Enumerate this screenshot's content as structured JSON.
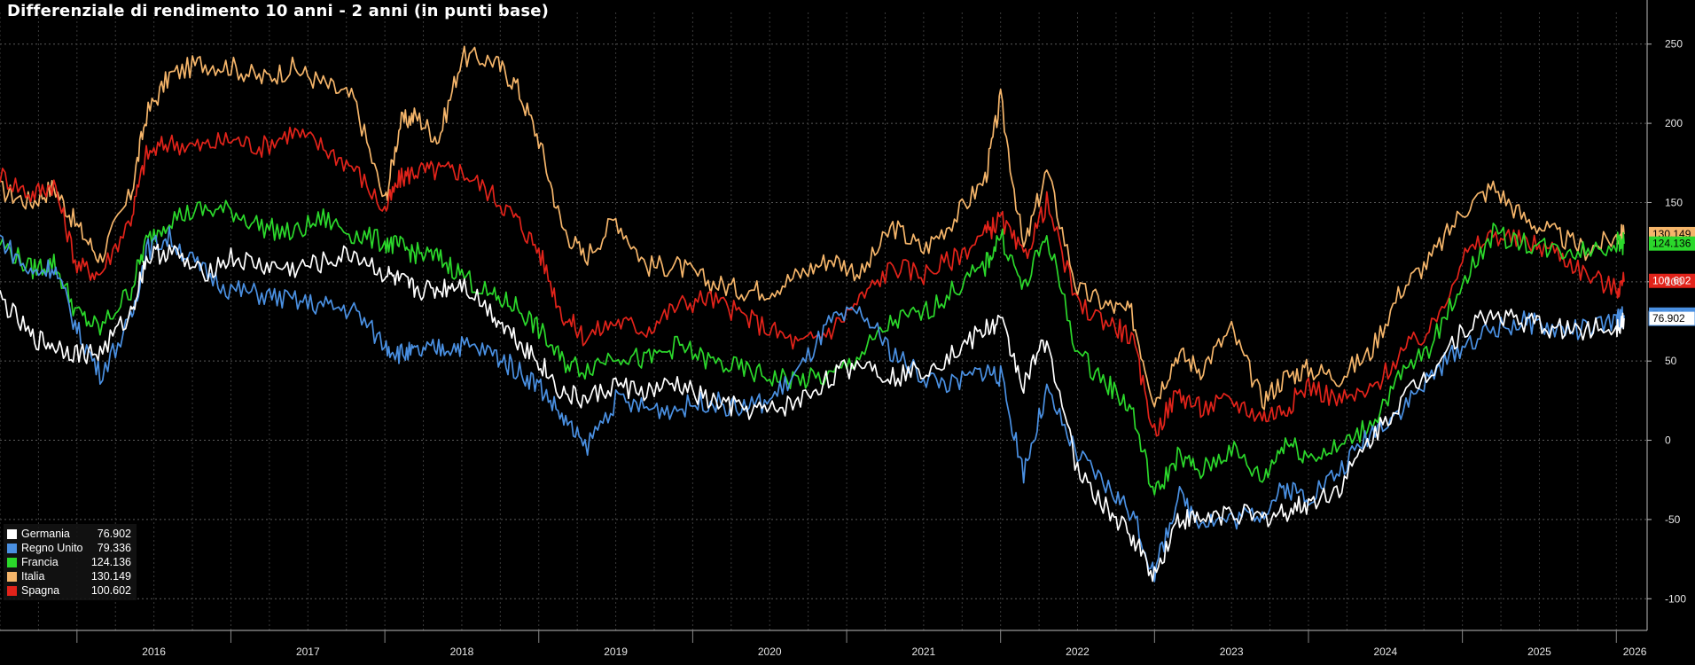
{
  "chart_data": {
    "type": "line",
    "title": "Differenziale di rendimento 10 anni - 2 anni (in punti base)",
    "x_tick_labels": [
      "2016",
      "2017",
      "2018",
      "2019",
      "2020",
      "2021",
      "2022",
      "2023",
      "2024",
      "2025",
      "2026"
    ],
    "y_tick_labels": [
      "250",
      "200",
      "150",
      "100",
      "50",
      "0",
      "-50",
      "-100"
    ],
    "y_ticks": [
      250,
      200,
      150,
      100,
      50,
      0,
      -50,
      -100
    ],
    "ylim": [
      -120,
      270
    ],
    "xlim": [
      2015.5,
      2026.2
    ],
    "grid": true,
    "legend_position": "bottom-left",
    "series": [
      {
        "name": "Italia",
        "color": "#f5b56a",
        "last": "130.149",
        "label_text": "130.149",
        "x": [
          2015.5,
          2015.7,
          2015.85,
          2016.0,
          2016.15,
          2016.35,
          2016.45,
          2016.6,
          2016.8,
          2017.0,
          2017.2,
          2017.4,
          2017.6,
          2017.8,
          2018.0,
          2018.1,
          2018.2,
          2018.35,
          2018.5,
          2018.7,
          2018.85,
          2019.0,
          2019.15,
          2019.3,
          2019.5,
          2019.7,
          2019.9,
          2020.1,
          2020.3,
          2020.5,
          2020.7,
          2020.9,
          2021.1,
          2021.3,
          2021.5,
          2021.7,
          2021.9,
          2022.0,
          2022.15,
          2022.3,
          2022.5,
          2022.7,
          2022.85,
          2023.0,
          2023.15,
          2023.3,
          2023.5,
          2023.7,
          2023.85,
          2024.0,
          2024.2,
          2024.4,
          2024.6,
          2024.8,
          2025.0,
          2025.2,
          2025.4,
          2025.6,
          2025.8,
          2026.0,
          2026.05
        ],
        "y": [
          158,
          150,
          160,
          135,
          115,
          155,
          205,
          230,
          238,
          236,
          228,
          235,
          225,
          215,
          150,
          200,
          205,
          190,
          242,
          240,
          225,
          190,
          135,
          115,
          140,
          110,
          110,
          100,
          95,
          95,
          105,
          115,
          105,
          135,
          120,
          140,
          165,
          215,
          120,
          170,
          95,
          85,
          80,
          25,
          55,
          45,
          70,
          25,
          40,
          45,
          40,
          55,
          95,
          115,
          145,
          160,
          140,
          130,
          120,
          128,
          130
        ]
      },
      {
        "name": "Spagna",
        "color": "#e2231a",
        "last": "100.602",
        "label_text": "100.602",
        "x": [
          2015.5,
          2015.7,
          2015.85,
          2016.0,
          2016.15,
          2016.35,
          2016.45,
          2016.6,
          2016.8,
          2017.0,
          2017.2,
          2017.4,
          2017.6,
          2017.8,
          2018.0,
          2018.1,
          2018.2,
          2018.35,
          2018.5,
          2018.7,
          2018.85,
          2019.0,
          2019.15,
          2019.3,
          2019.5,
          2019.7,
          2019.9,
          2020.1,
          2020.3,
          2020.5,
          2020.7,
          2020.9,
          2021.1,
          2021.3,
          2021.5,
          2021.7,
          2021.9,
          2022.0,
          2022.15,
          2022.3,
          2022.5,
          2022.7,
          2022.85,
          2023.0,
          2023.15,
          2023.3,
          2023.5,
          2023.7,
          2023.85,
          2024.0,
          2024.2,
          2024.4,
          2024.6,
          2024.8,
          2025.0,
          2025.2,
          2025.4,
          2025.6,
          2025.8,
          2026.0,
          2026.05
        ],
        "y": [
          168,
          155,
          162,
          110,
          105,
          140,
          180,
          188,
          185,
          190,
          185,
          195,
          185,
          172,
          145,
          165,
          170,
          170,
          170,
          155,
          140,
          120,
          80,
          65,
          75,
          70,
          85,
          90,
          80,
          70,
          60,
          70,
          90,
          110,
          105,
          115,
          130,
          140,
          115,
          150,
          85,
          75,
          65,
          5,
          30,
          20,
          25,
          15,
          20,
          35,
          25,
          30,
          55,
          70,
          115,
          130,
          125,
          120,
          105,
          95,
          100
        ]
      },
      {
        "name": "Francia",
        "color": "#2bd82b",
        "last": "124.136",
        "label_text": "124.136",
        "x": [
          2015.5,
          2015.7,
          2015.85,
          2016.0,
          2016.15,
          2016.35,
          2016.45,
          2016.6,
          2016.8,
          2017.0,
          2017.2,
          2017.4,
          2017.6,
          2017.8,
          2018.0,
          2018.1,
          2018.2,
          2018.35,
          2018.5,
          2018.7,
          2018.85,
          2019.0,
          2019.15,
          2019.3,
          2019.5,
          2019.7,
          2019.9,
          2020.1,
          2020.3,
          2020.5,
          2020.7,
          2020.9,
          2021.1,
          2021.3,
          2021.5,
          2021.7,
          2021.9,
          2022.0,
          2022.15,
          2022.3,
          2022.5,
          2022.7,
          2022.85,
          2023.0,
          2023.15,
          2023.3,
          2023.5,
          2023.7,
          2023.85,
          2024.0,
          2024.2,
          2024.4,
          2024.6,
          2024.8,
          2025.0,
          2025.2,
          2025.4,
          2025.6,
          2025.8,
          2026.0,
          2026.05
        ],
        "y": [
          125,
          108,
          112,
          80,
          70,
          95,
          125,
          140,
          145,
          145,
          135,
          130,
          140,
          130,
          125,
          122,
          118,
          115,
          105,
          90,
          85,
          70,
          50,
          45,
          55,
          50,
          60,
          50,
          45,
          40,
          38,
          40,
          55,
          75,
          80,
          95,
          110,
          130,
          95,
          130,
          55,
          35,
          20,
          -35,
          -10,
          -20,
          -5,
          -25,
          0,
          -10,
          -5,
          10,
          40,
          60,
          100,
          130,
          125,
          120,
          120,
          125,
          124
        ]
      },
      {
        "name": "Regno Unito",
        "color": "#4a90e2",
        "last": "79.336",
        "label_text": "79.336",
        "x": [
          2015.5,
          2015.7,
          2015.85,
          2016.0,
          2016.15,
          2016.35,
          2016.45,
          2016.6,
          2016.8,
          2017.0,
          2017.2,
          2017.4,
          2017.6,
          2017.8,
          2018.0,
          2018.1,
          2018.2,
          2018.35,
          2018.5,
          2018.7,
          2018.85,
          2019.0,
          2019.15,
          2019.3,
          2019.5,
          2019.7,
          2019.9,
          2020.1,
          2020.3,
          2020.5,
          2020.7,
          2020.9,
          2021.1,
          2021.3,
          2021.5,
          2021.7,
          2021.9,
          2022.0,
          2022.15,
          2022.3,
          2022.5,
          2022.7,
          2022.85,
          2023.0,
          2023.15,
          2023.3,
          2023.5,
          2023.7,
          2023.85,
          2024.0,
          2024.2,
          2024.4,
          2024.6,
          2024.8,
          2025.0,
          2025.2,
          2025.4,
          2025.6,
          2025.8,
          2026.0,
          2026.05
        ],
        "y": [
          128,
          105,
          110,
          70,
          42,
          75,
          120,
          128,
          108,
          95,
          92,
          88,
          85,
          82,
          60,
          55,
          55,
          58,
          60,
          55,
          45,
          35,
          15,
          -5,
          25,
          20,
          20,
          25,
          20,
          25,
          45,
          75,
          80,
          55,
          40,
          35,
          45,
          40,
          -20,
          30,
          -10,
          -30,
          -45,
          -85,
          -35,
          -50,
          -50,
          -45,
          -30,
          -35,
          -20,
          5,
          20,
          40,
          60,
          70,
          75,
          70,
          70,
          75,
          79
        ]
      },
      {
        "name": "Germania",
        "color": "#ffffff",
        "last": "76.902",
        "label_text": "76.902",
        "x": [
          2015.5,
          2015.7,
          2015.85,
          2016.0,
          2016.15,
          2016.35,
          2016.45,
          2016.6,
          2016.8,
          2017.0,
          2017.2,
          2017.4,
          2017.6,
          2017.8,
          2018.0,
          2018.1,
          2018.2,
          2018.35,
          2018.5,
          2018.7,
          2018.85,
          2019.0,
          2019.15,
          2019.3,
          2019.5,
          2019.7,
          2019.9,
          2020.1,
          2020.3,
          2020.5,
          2020.7,
          2020.9,
          2021.1,
          2021.3,
          2021.5,
          2021.7,
          2021.9,
          2022.0,
          2022.15,
          2022.3,
          2022.5,
          2022.7,
          2022.85,
          2023.0,
          2023.15,
          2023.3,
          2023.5,
          2023.7,
          2023.85,
          2024.0,
          2024.2,
          2024.4,
          2024.6,
          2024.8,
          2025.0,
          2025.2,
          2025.4,
          2025.6,
          2025.8,
          2026.0,
          2026.05
        ],
        "y": [
          90,
          65,
          60,
          55,
          55,
          80,
          115,
          120,
          105,
          115,
          110,
          108,
          112,
          118,
          105,
          100,
          95,
          95,
          100,
          80,
          65,
          50,
          30,
          25,
          35,
          30,
          35,
          25,
          20,
          18,
          25,
          40,
          50,
          40,
          45,
          55,
          70,
          75,
          35,
          65,
          -20,
          -45,
          -60,
          -85,
          -50,
          -50,
          -45,
          -50,
          -45,
          -40,
          -30,
          0,
          25,
          45,
          70,
          80,
          75,
          70,
          70,
          72,
          77
        ]
      }
    ],
    "legend": [
      {
        "name": "Germania",
        "value": "76.902",
        "color": "#ffffff"
      },
      {
        "name": "Regno Unito",
        "value": "79.336",
        "color": "#4a90e2"
      },
      {
        "name": "Francia",
        "value": "124.136",
        "color": "#2bd82b"
      },
      {
        "name": "Italia",
        "value": "130.149",
        "color": "#f5b56a"
      },
      {
        "name": "Spagna",
        "value": "100.602",
        "color": "#e2231a"
      }
    ]
  }
}
